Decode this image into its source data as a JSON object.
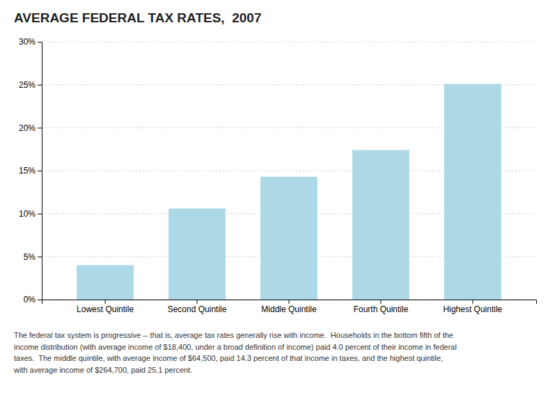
{
  "chart_data": {
    "type": "bar",
    "title": "AVERAGE FEDERAL TAX RATES,  2007",
    "categories": [
      "Lowest Quintile",
      "Second Quintile",
      "Middle Quintile",
      "Fourth Quintile",
      "Highest Quintile"
    ],
    "values": [
      4.0,
      10.6,
      14.3,
      17.4,
      25.1
    ],
    "color": "#add8e6",
    "ylim": [
      0,
      30
    ],
    "yticks": [
      {
        "value": 0,
        "label": "0%"
      },
      {
        "value": 5,
        "label": "5%"
      },
      {
        "value": 10,
        "label": "10%"
      },
      {
        "value": 15,
        "label": "15%"
      },
      {
        "value": 20,
        "label": "20%"
      },
      {
        "value": 25,
        "label": "25%"
      },
      {
        "value": 30,
        "label": "30%"
      }
    ],
    "grid": true,
    "caption": "The federal tax system is progressive -- that is, average tax rates generally rise with income.  Households in the bottom fifth of the\nincome distribution (with average income of $18,400, under a broad definition of income) paid 4.0 percent of their income in federal\ntaxes.  The middle quintile, with average income of $64,500, paid 14.3 percent of that income in taxes, and the highest quintile,\nwith average income of $264,700, paid 25.1 percent."
  }
}
